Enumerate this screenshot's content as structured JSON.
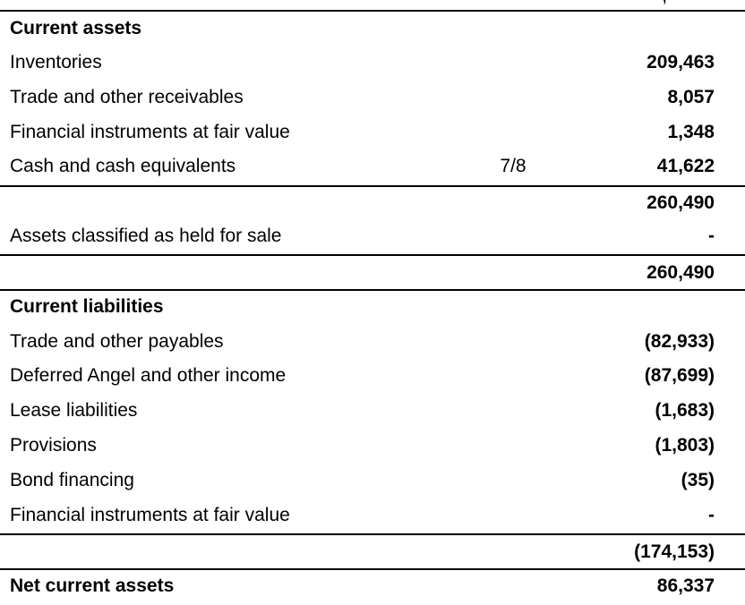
{
  "top_fragment": "‚",
  "current_assets": {
    "heading": "Current assets",
    "items": [
      {
        "label": "Inventories",
        "note": "",
        "amount": "209,463"
      },
      {
        "label": "Trade and other receivables",
        "note": "",
        "amount": "8,057"
      },
      {
        "label": "Financial instruments at fair value",
        "note": "",
        "amount": "1,348"
      },
      {
        "label": "Cash and cash equivalents",
        "note": "7/8",
        "amount": "41,622"
      }
    ],
    "subtotal": "260,490",
    "held_for_sale": {
      "label": "Assets classified as held for sale",
      "amount": "-"
    },
    "total": "260,490"
  },
  "current_liabilities": {
    "heading": "Current liabilities",
    "items": [
      {
        "label": "Trade and other payables",
        "amount": "(82,933)"
      },
      {
        "label": "Deferred Angel and other income",
        "amount": "(87,699)"
      },
      {
        "label": "Lease liabilities",
        "amount": "(1,683)"
      },
      {
        "label": "Provisions",
        "amount": "(1,803)"
      },
      {
        "label": "Bond financing",
        "amount": "(35)"
      },
      {
        "label": "Financial instruments at fair value",
        "amount": "-"
      }
    ],
    "total": "(174,153)"
  },
  "net_current_assets": {
    "label": "Net current assets",
    "amount": "86,337"
  }
}
